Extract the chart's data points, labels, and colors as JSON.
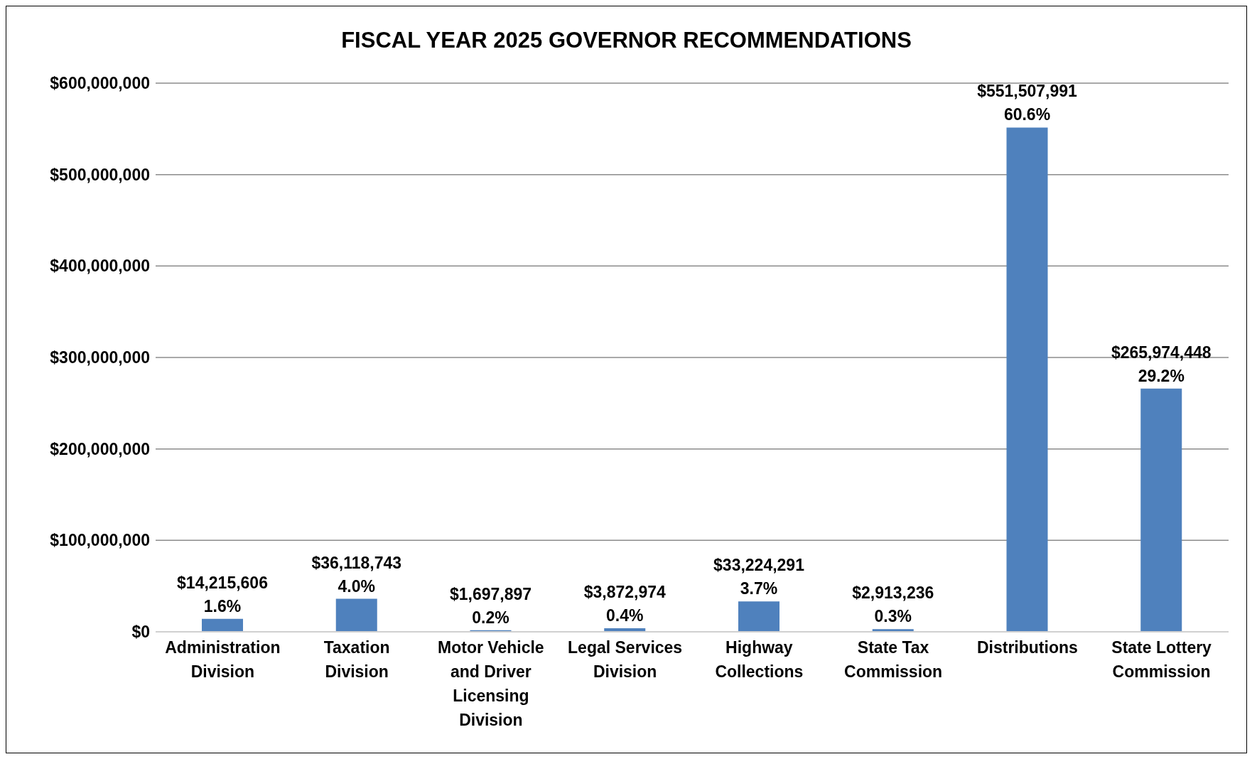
{
  "chart_data": {
    "type": "bar",
    "title": "FISCAL YEAR 2025 GOVERNOR RECOMMENDATIONS",
    "categories": [
      "Administration Division",
      "Taxation Division",
      "Motor Vehicle and Driver Licensing Division",
      "Legal Services Division",
      "Highway Collections",
      "State Tax Commission",
      "Distributions",
      "State Lottery Commission"
    ],
    "values": [
      14215606,
      36118743,
      1697897,
      3872974,
      33224291,
      2913236,
      551507991,
      265974448
    ],
    "value_labels": [
      "$14,215,606\n1.6%",
      "$36,118,743\n4.0%",
      "$1,697,897\n0.2%",
      "$3,872,974\n0.4%",
      "$33,224,291\n3.7%",
      "$2,913,236\n0.3%",
      "$551,507,991\n60.6%",
      "$265,974,448\n29.2%"
    ],
    "color": "#4f81bd",
    "ylim": [
      0,
      600000000
    ],
    "yticks": [
      {
        "value": 0,
        "label": "$0"
      },
      {
        "value": 100000000,
        "label": "$100,000,000"
      },
      {
        "value": 200000000,
        "label": "$200,000,000"
      },
      {
        "value": 300000000,
        "label": "$300,000,000"
      },
      {
        "value": 400000000,
        "label": "$400,000,000"
      },
      {
        "value": 500000000,
        "label": "$500,000,000"
      },
      {
        "value": 600000000,
        "label": "$600,000,000"
      }
    ],
    "grid": "y"
  }
}
